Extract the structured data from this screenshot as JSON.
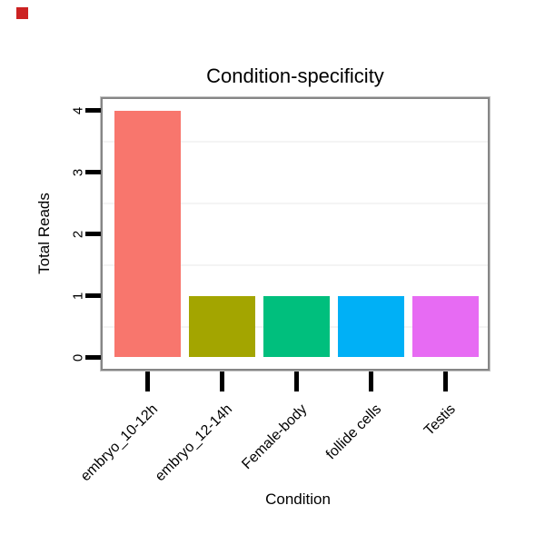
{
  "corner_marker": {
    "color": "#cc2222"
  },
  "chart_data": {
    "type": "bar",
    "title": "Condition-specificity",
    "xlabel": "Condition",
    "ylabel": "Total Reads",
    "categories": [
      "embryo_10-12h",
      "embryo_12-14h",
      "Female-body",
      "follide cells",
      "Testis"
    ],
    "values": [
      4,
      1,
      1,
      1,
      1
    ],
    "bar_colors": [
      "#F8766D",
      "#A3A500",
      "#00BF7D",
      "#00B0F6",
      "#E76BF3"
    ],
    "ytick_labels": [
      "0",
      "1",
      "2",
      "3",
      "4"
    ],
    "yticks": [
      0,
      1,
      2,
      3,
      4
    ],
    "minor_gridlines": [
      0.5,
      1.5,
      2.5,
      3.5
    ],
    "ylim": [
      0,
      4
    ],
    "y_range_shown": [
      -0.2,
      4.2
    ],
    "grid": "minor-horizontal-only",
    "legend": "none",
    "bar_gap_ratio": 0.9,
    "panel_border_color": "#868686",
    "minor_grid_color": "#f4f4f4",
    "tick_color": "#000000",
    "text_color": "#000000",
    "background_color": "#ffffff"
  }
}
